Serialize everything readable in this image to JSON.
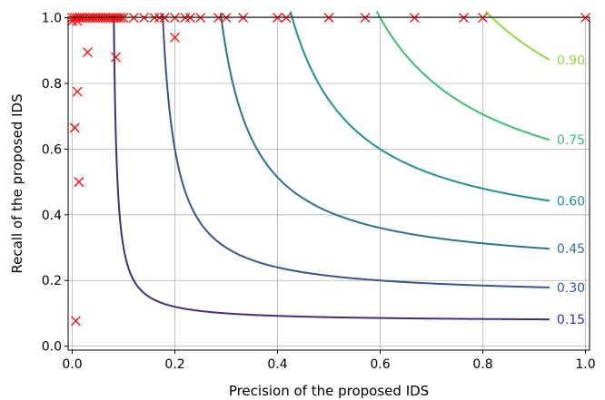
{
  "chart_data": {
    "type": "scatter",
    "xlabel": "Precision of the proposed IDS",
    "ylabel": "Recall of the proposed IDS",
    "xlim": [
      0.0,
      1.0
    ],
    "ylim": [
      0.0,
      1.0
    ],
    "x_ticks": [
      {
        "value": 0.0,
        "label": "0.0"
      },
      {
        "value": 0.2,
        "label": "0.2"
      },
      {
        "value": 0.4,
        "label": "0.4"
      },
      {
        "value": 0.6,
        "label": "0.6"
      },
      {
        "value": 0.8,
        "label": "0.8"
      },
      {
        "value": 1.0,
        "label": "1.0"
      }
    ],
    "y_ticks": [
      {
        "value": 0.0,
        "label": "0.0"
      },
      {
        "value": 0.2,
        "label": "0.2"
      },
      {
        "value": 0.4,
        "label": "0.4"
      },
      {
        "value": 0.6,
        "label": "0.6"
      },
      {
        "value": 0.8,
        "label": "0.8"
      },
      {
        "value": 1.0,
        "label": "1.0"
      }
    ],
    "grid": true,
    "contours": [
      {
        "level": 0.15,
        "label": "0.15",
        "color": "#472c7a"
      },
      {
        "level": 0.3,
        "label": "0.30",
        "color": "#3b528b"
      },
      {
        "level": 0.45,
        "label": "0.45",
        "color": "#2c728e"
      },
      {
        "level": 0.6,
        "label": "0.60",
        "color": "#21908d"
      },
      {
        "level": 0.75,
        "label": "0.75",
        "color": "#3dbc74"
      },
      {
        "level": 0.9,
        "label": "0.90",
        "color": "#95d840"
      }
    ],
    "contour_x_range": [
      0.01,
      0.93
    ],
    "points": {
      "marker": "x",
      "color": "#ff0000",
      "xy": [
        [
          0.0,
          1.0
        ],
        [
          0.005,
          1.0
        ],
        [
          0.01,
          1.0
        ],
        [
          0.015,
          1.0
        ],
        [
          0.02,
          1.0
        ],
        [
          0.025,
          1.0
        ],
        [
          0.03,
          1.0
        ],
        [
          0.035,
          1.0
        ],
        [
          0.04,
          1.0
        ],
        [
          0.045,
          1.0
        ],
        [
          0.05,
          1.0
        ],
        [
          0.055,
          1.0
        ],
        [
          0.06,
          1.0
        ],
        [
          0.065,
          1.0
        ],
        [
          0.07,
          1.0
        ],
        [
          0.075,
          1.0
        ],
        [
          0.08,
          1.0
        ],
        [
          0.085,
          1.0
        ],
        [
          0.09,
          1.0
        ],
        [
          0.095,
          1.0
        ],
        [
          0.1,
          1.0
        ],
        [
          0.12,
          1.0
        ],
        [
          0.14,
          1.0
        ],
        [
          0.16,
          1.0
        ],
        [
          0.17,
          1.0
        ],
        [
          0.18,
          1.0
        ],
        [
          0.2,
          1.0
        ],
        [
          0.22,
          1.0
        ],
        [
          0.23,
          1.0
        ],
        [
          0.25,
          1.0
        ],
        [
          0.285,
          1.0
        ],
        [
          0.3,
          1.0
        ],
        [
          0.333,
          1.0
        ],
        [
          0.4,
          1.0
        ],
        [
          0.417,
          1.0
        ],
        [
          0.5,
          1.0
        ],
        [
          0.571,
          1.0
        ],
        [
          0.667,
          1.0
        ],
        [
          0.763,
          1.0
        ],
        [
          0.8,
          1.0
        ],
        [
          1.0,
          1.0
        ],
        [
          0.0,
          0.99
        ],
        [
          0.01,
          0.99
        ],
        [
          0.2,
          0.94
        ],
        [
          0.03,
          0.895
        ],
        [
          0.085,
          0.88
        ],
        [
          0.01,
          0.775
        ],
        [
          0.005,
          0.665
        ],
        [
          0.013,
          0.5
        ],
        [
          0.007,
          0.077
        ]
      ]
    }
  }
}
